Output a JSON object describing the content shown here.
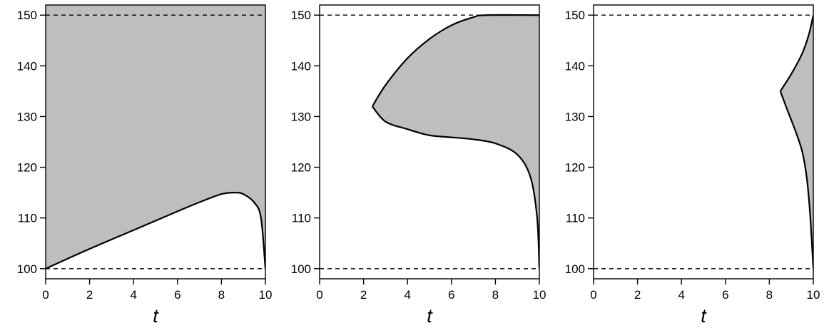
{
  "chart_data": [
    {
      "type": "area",
      "xlabel": "t",
      "ylabel": "",
      "xlim": [
        0,
        10
      ],
      "ylim": [
        98,
        152
      ],
      "xticks": [
        0,
        2,
        4,
        6,
        8,
        10
      ],
      "yticks": [
        100,
        110,
        120,
        130,
        140,
        150
      ],
      "reference_lines": [
        100,
        150
      ],
      "grid": false,
      "fill_color": "#bebebe",
      "boundary": [
        [
          0,
          100
        ],
        [
          2,
          103.9
        ],
        [
          4,
          107.6
        ],
        [
          6,
          111.3
        ],
        [
          7,
          113.1
        ],
        [
          8,
          114.7
        ],
        [
          8.6,
          115
        ],
        [
          9,
          114.7
        ],
        [
          9.5,
          113
        ],
        [
          9.8,
          110
        ],
        [
          10,
          100
        ]
      ],
      "shaded_region": "above boundary"
    },
    {
      "type": "area",
      "xlabel": "t",
      "ylabel": "",
      "xlim": [
        0,
        10
      ],
      "ylim": [
        98,
        152
      ],
      "xticks": [
        0,
        2,
        4,
        6,
        8,
        10
      ],
      "yticks": [
        100,
        110,
        120,
        130,
        140,
        150
      ],
      "reference_lines": [
        100,
        150
      ],
      "grid": false,
      "fill_color": "#bebebe",
      "upper_boundary": [
        [
          2.4,
          132
        ],
        [
          3,
          136.2
        ],
        [
          4,
          141.5
        ],
        [
          5,
          145.3
        ],
        [
          6,
          148
        ],
        [
          7,
          149.6
        ],
        [
          7.6,
          150
        ],
        [
          10,
          150
        ]
      ],
      "lower_boundary": [
        [
          2.4,
          132
        ],
        [
          3,
          129
        ],
        [
          4,
          127.5
        ],
        [
          5,
          126.3
        ],
        [
          6,
          125.9
        ],
        [
          7,
          125.5
        ],
        [
          8,
          124.7
        ],
        [
          9,
          122.5
        ],
        [
          9.6,
          118
        ],
        [
          9.9,
          110
        ],
        [
          10,
          100
        ]
      ]
    },
    {
      "type": "area",
      "xlabel": "t",
      "ylabel": "",
      "xlim": [
        0,
        10
      ],
      "ylim": [
        98,
        152
      ],
      "xticks": [
        0,
        2,
        4,
        6,
        8,
        10
      ],
      "yticks": [
        100,
        110,
        120,
        130,
        140,
        150
      ],
      "reference_lines": [
        100,
        150
      ],
      "grid": false,
      "fill_color": "#bebebe",
      "upper_boundary": [
        [
          8.5,
          135
        ],
        [
          9,
          138.4
        ],
        [
          9.5,
          142.5
        ],
        [
          9.8,
          146.2
        ],
        [
          10,
          150
        ]
      ],
      "lower_boundary": [
        [
          8.5,
          135
        ],
        [
          8.8,
          131.5
        ],
        [
          9.2,
          127
        ],
        [
          9.5,
          123
        ],
        [
          9.7,
          118
        ],
        [
          9.85,
          111
        ],
        [
          10,
          100
        ]
      ]
    }
  ]
}
